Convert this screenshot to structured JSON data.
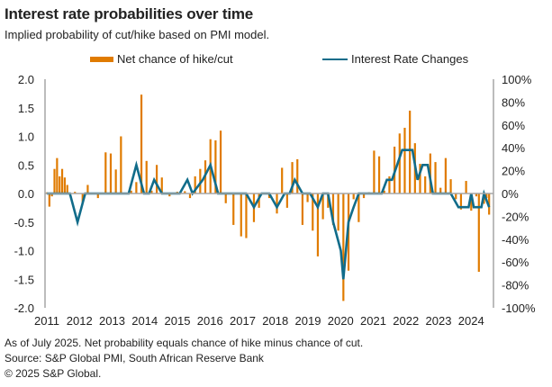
{
  "header": {
    "title": "Interest rate probabilities over time",
    "subtitle": "Implied probability of cut/hike based on PMI model."
  },
  "legend": {
    "bar_label": "Net chance of hike/cut",
    "line_label": "Interest Rate Changes"
  },
  "footer": {
    "note": "As of July 2025. Net probability equals chance of hike minus chance of cut.",
    "source": "Source: S&P Global PMI, South African Reserve Bank",
    "copyright": "© 2025 S&P Global."
  },
  "colors": {
    "bar": "#E07B00",
    "line": "#116C8A",
    "axis": "#A6A6A6"
  },
  "chart_data": {
    "type": "bar+line",
    "title": "Interest rate probabilities over time",
    "subtitle": "Implied probability of cut/hike based on PMI model.",
    "x_unit": "month index from Jan 2011",
    "x_range": [
      0,
      174
    ],
    "x_tick_labels": [
      "2011",
      "2012",
      "2013",
      "2014",
      "2015",
      "2016",
      "2017",
      "2018",
      "2019",
      "2020",
      "2021",
      "2022",
      "2023",
      "2024"
    ],
    "left_axis": {
      "label": "Net chance of hike/cut",
      "range": [
        -2.0,
        2.0
      ],
      "ticks": [
        "2.0",
        "1.5",
        "1.0",
        "0.5",
        "0.0",
        "-0.5",
        "-1.0",
        "-1.5",
        "-2.0"
      ]
    },
    "right_axis": {
      "label": "Interest Rate Changes",
      "range": [
        -100,
        100
      ],
      "ticks": [
        "100%",
        "80%",
        "60%",
        "40%",
        "20%",
        "0%",
        "-20%",
        "-40%",
        "-60%",
        "-80%",
        "-100%"
      ]
    },
    "legend_position": "top",
    "series": [
      {
        "name": "Net chance of hike/cut",
        "type": "bar",
        "axis": "left",
        "points": [
          [
            0,
            0.02
          ],
          [
            1,
            -0.23
          ],
          [
            2,
            -0.05
          ],
          [
            3,
            0.43
          ],
          [
            4,
            0.62
          ],
          [
            5,
            0.3
          ],
          [
            6,
            0.43
          ],
          [
            7,
            0.28
          ],
          [
            8,
            0.15
          ],
          [
            11,
            0.03
          ],
          [
            14,
            -0.17
          ],
          [
            16,
            0.15
          ],
          [
            20,
            -0.08
          ],
          [
            23,
            0.72
          ],
          [
            25,
            0.7
          ],
          [
            27,
            0.42
          ],
          [
            29,
            1.0
          ],
          [
            33,
            0.05
          ],
          [
            35,
            0.2
          ],
          [
            37,
            1.73
          ],
          [
            39,
            0.57
          ],
          [
            41,
            0.05
          ],
          [
            43,
            0.5
          ],
          [
            45,
            0.28
          ],
          [
            48,
            -0.05
          ],
          [
            51,
            0.03
          ],
          [
            54,
            0.04
          ],
          [
            56,
            -0.08
          ],
          [
            58,
            0.3
          ],
          [
            60,
            0.43
          ],
          [
            62,
            0.58
          ],
          [
            64,
            0.95
          ],
          [
            66,
            0.93
          ],
          [
            68,
            1.1
          ],
          [
            70,
            -0.17
          ],
          [
            73,
            -0.55
          ],
          [
            76,
            -0.75
          ],
          [
            78,
            -0.78
          ],
          [
            81,
            -0.5
          ],
          [
            83,
            -0.25
          ],
          [
            87,
            -0.08
          ],
          [
            90,
            -0.35
          ],
          [
            92,
            0.45
          ],
          [
            94,
            -0.25
          ],
          [
            96,
            0.55
          ],
          [
            98,
            0.6
          ],
          [
            100,
            -0.55
          ],
          [
            102,
            -0.15
          ],
          [
            104,
            -0.65
          ],
          [
            106,
            -1.1
          ],
          [
            108,
            -0.45
          ],
          [
            110,
            -0.25
          ],
          [
            112,
            -0.55
          ],
          [
            114,
            -0.65
          ],
          [
            116,
            -1.88
          ],
          [
            118,
            -1.35
          ],
          [
            120,
            -0.1
          ],
          [
            122,
            -0.5
          ],
          [
            124,
            -0.08
          ],
          [
            126,
            0.02
          ],
          [
            128,
            0.75
          ],
          [
            130,
            0.65
          ],
          [
            132,
            0.05
          ],
          [
            134,
            0.3
          ],
          [
            136,
            0.82
          ],
          [
            138,
            1.05
          ],
          [
            140,
            1.15
          ],
          [
            142,
            1.45
          ],
          [
            144,
            0.88
          ],
          [
            146,
            0.52
          ],
          [
            148,
            0.3
          ],
          [
            150,
            0.7
          ],
          [
            152,
            0.55
          ],
          [
            154,
            0.1
          ],
          [
            156,
            0.62
          ],
          [
            158,
            0.25
          ],
          [
            160,
            -0.1
          ],
          [
            162,
            -0.28
          ],
          [
            164,
            0.22
          ],
          [
            166,
            -0.3
          ],
          [
            168,
            -0.05
          ],
          [
            169,
            -1.37
          ],
          [
            171,
            -0.18
          ],
          [
            172,
            -0.08
          ],
          [
            173,
            -0.37
          ]
        ]
      },
      {
        "name": "Interest Rate Changes",
        "type": "line",
        "axis": "right",
        "points": [
          [
            0,
            0
          ],
          [
            9,
            0
          ],
          [
            12,
            -25
          ],
          [
            15,
            0
          ],
          [
            26,
            0
          ],
          [
            29,
            0
          ],
          [
            32,
            0
          ],
          [
            35,
            25
          ],
          [
            38,
            0
          ],
          [
            40,
            0
          ],
          [
            42,
            12
          ],
          [
            45,
            0
          ],
          [
            49,
            0
          ],
          [
            52,
            0
          ],
          [
            55,
            12
          ],
          [
            57,
            0
          ],
          [
            61,
            12
          ],
          [
            64,
            25
          ],
          [
            67,
            0
          ],
          [
            71,
            0
          ],
          [
            75,
            0
          ],
          [
            78,
            0
          ],
          [
            81,
            -12
          ],
          [
            84,
            0
          ],
          [
            87,
            0
          ],
          [
            90,
            -12
          ],
          [
            93,
            0
          ],
          [
            95,
            0
          ],
          [
            97,
            12
          ],
          [
            100,
            0
          ],
          [
            103,
            0
          ],
          [
            106,
            -12
          ],
          [
            108,
            0
          ],
          [
            110,
            0
          ],
          [
            112,
            -25
          ],
          [
            115,
            -50
          ],
          [
            116,
            -75
          ],
          [
            118,
            -25
          ],
          [
            120,
            -12
          ],
          [
            122,
            0
          ],
          [
            124,
            0
          ],
          [
            131,
            0
          ],
          [
            133,
            12
          ],
          [
            135,
            12
          ],
          [
            137,
            25
          ],
          [
            139,
            38
          ],
          [
            141,
            38
          ],
          [
            143,
            38
          ],
          [
            145,
            12
          ],
          [
            147,
            25
          ],
          [
            149,
            25
          ],
          [
            151,
            0
          ],
          [
            153,
            0
          ],
          [
            158,
            0
          ],
          [
            161,
            -12
          ],
          [
            163,
            -12
          ],
          [
            165,
            -12
          ],
          [
            166,
            0
          ],
          [
            167,
            -12
          ],
          [
            168,
            -12
          ],
          [
            170,
            -12
          ],
          [
            171,
            0
          ],
          [
            173,
            -12
          ]
        ]
      }
    ]
  }
}
